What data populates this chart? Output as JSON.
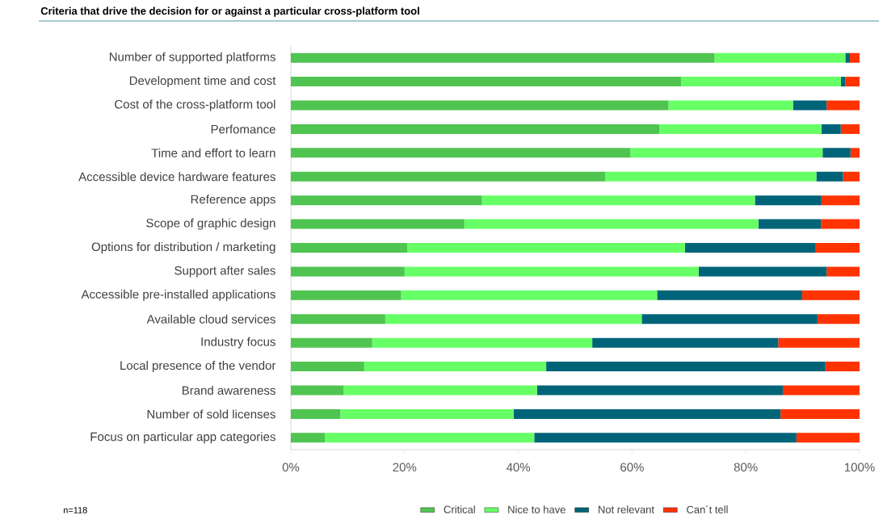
{
  "chart_data": {
    "type": "bar",
    "title": "Criteria that drive the decision for or against a particular cross-platform tool",
    "orientation": "horizontal",
    "stacked": true,
    "categories": [
      "Number of supported platforms",
      "Development time and cost",
      "Cost of the cross-platform tool",
      "Perfomance",
      "Time and effort to learn",
      "Accessible device hardware features",
      "Reference apps",
      "Scope of graphic design",
      "Options for distribution / marketing",
      "Support after sales",
      "Accessible pre-installed applications",
      "Available cloud services",
      "Industry focus",
      "Local presence of the vendor",
      "Brand awareness",
      "Number of sold licenses",
      "Focus on particular app categories"
    ],
    "series": [
      {
        "name": "Critical",
        "color": "#50c450",
        "values": [
          74.5,
          68.6,
          66.4,
          64.8,
          59.7,
          55.3,
          33.6,
          30.5,
          20.5,
          20.0,
          19.4,
          16.6,
          14.3,
          12.9,
          9.3,
          8.7,
          6.0
        ]
      },
      {
        "name": "Nice to have",
        "color": "#66ff66",
        "values": [
          23.0,
          28.1,
          21.9,
          28.5,
          33.8,
          37.1,
          48.0,
          51.7,
          48.8,
          51.7,
          45.0,
          45.1,
          38.7,
          32.0,
          34.0,
          30.5,
          36.8
        ]
      },
      {
        "name": "Not relevant",
        "color": "#006479",
        "values": [
          0.8,
          0.8,
          5.9,
          3.4,
          4.9,
          4.7,
          11.7,
          11.0,
          23.0,
          22.5,
          25.5,
          30.9,
          32.7,
          49.1,
          43.2,
          46.9,
          46.1
        ]
      },
      {
        "name": "Can´t tell",
        "color": "#ff3300",
        "values": [
          1.7,
          2.5,
          5.8,
          3.3,
          1.6,
          2.9,
          6.7,
          6.8,
          7.7,
          5.8,
          10.1,
          7.4,
          14.3,
          6.0,
          13.5,
          13.9,
          11.1
        ]
      }
    ],
    "xlim": [
      0,
      100
    ],
    "xticks": [
      {
        "value": 0,
        "label": "0%"
      },
      {
        "value": 20,
        "label": "20%"
      },
      {
        "value": 40,
        "label": "40%"
      },
      {
        "value": 60,
        "label": "60%"
      },
      {
        "value": 80,
        "label": "80%"
      },
      {
        "value": 100,
        "label": "100%"
      }
    ],
    "legend": "bottom",
    "annotations": [
      "n=118"
    ]
  }
}
